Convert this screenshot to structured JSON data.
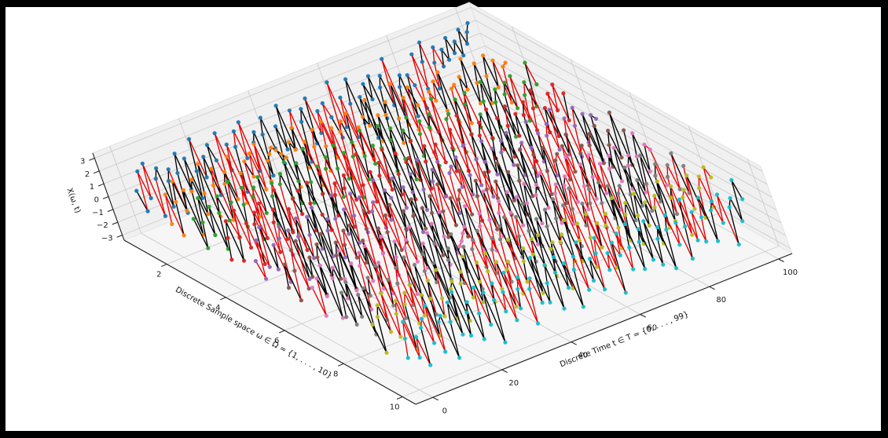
{
  "figure": {
    "frame_color": "#000000",
    "background": "#ffffff"
  },
  "chart_data": {
    "type": "line",
    "projection": "3d",
    "title": "",
    "xlabel": "Discrete Sample space ω ∈ Ω = {1, . . . , 10}",
    "ylabel": "Discrete Time t ∈ T = {0, . . . , 99}",
    "zlabel": "X(ω, t)",
    "xticks": [
      2,
      4,
      6,
      8,
      10
    ],
    "yticks": [
      0,
      20,
      40,
      60,
      80,
      100
    ],
    "zticks": [
      -3,
      -2,
      -1,
      0,
      1,
      2,
      3
    ],
    "xlim": [
      0.55,
      10.45
    ],
    "ylim": [
      -4.95,
      103.95
    ],
    "zlim": [
      -3.4,
      3.4
    ],
    "grid": true,
    "legend": null,
    "pane_color": "#f0f0f0",
    "floor_color": "#f6f6f6",
    "grid_color": "#cccccc",
    "axis_color": "#1a1a1a",
    "tick_color": "#1a1a1a",
    "line_colors": {
      "primary": "#e50000",
      "secondary": "#000000"
    },
    "series": [
      {
        "name": "ω = 1",
        "omega": 1,
        "marker_color": "#1f77b4",
        "values": [
          0.5,
          -1.2,
          1.8,
          -0.4,
          2.2,
          -2.0,
          0.8,
          1.5,
          -1.6,
          0.3,
          1.1,
          -2.4,
          0.6,
          2.0,
          -0.9,
          1.4,
          -1.8,
          0.2,
          2.6,
          -0.5,
          1.0,
          -2.1,
          1.7,
          0.4,
          -1.3,
          2.3,
          -0.7,
          1.2,
          -2.6,
          0.8,
          1.9,
          -0.3,
          2.4,
          -1.5,
          0.6,
          1.3,
          -2.2,
          0.9,
          2.1,
          -0.4,
          -1.7,
          1.1,
          -0.8,
          2.5,
          -1.0,
          0.5,
          1.8,
          -2.3,
          0.7,
          1.6,
          -1.2,
          2.2,
          -0.6,
          1.0,
          -2.0,
          1.4,
          0.2,
          -1.5,
          2.7,
          -0.9,
          1.3,
          -1.9,
          0.6,
          2.4,
          -1.1,
          0.8,
          -2.5,
          1.6,
          0.3,
          2.0,
          -1.4,
          0.9,
          1.7,
          -0.7,
          2.8,
          -1.6,
          0.4,
          1.2,
          -2.1,
          1.0,
          0.1,
          -1.8,
          2.3,
          -0.5,
          1.5,
          2.9,
          -0.8,
          1.1,
          2.2,
          0.6,
          1.8,
          0.9,
          2.5,
          1.2,
          2.0,
          0.8,
          2.7,
          1.5,
          2.3,
          2.9
        ]
      },
      {
        "name": "ω = 2",
        "omega": 2,
        "marker_color": "#ff7f0e",
        "values": [
          -0.8,
          1.4,
          -1.9,
          0.6,
          2.1,
          -0.3,
          1.2,
          -2.4,
          0.9,
          1.7,
          -1.1,
          0.4,
          2.6,
          -1.6,
          0.7,
          1.9,
          -2.2,
          0.5,
          1.3,
          -0.9,
          2.3,
          -1.4,
          0.8,
          -2.7,
          1.5,
          0.2,
          1.9,
          -1.0,
          2.4,
          -0.6,
          0.9,
          1.3,
          1.7,
          1.4,
          1.0,
          0.6,
          -1.8,
          1.6,
          0.9,
          2.5,
          -0.7,
          1.2,
          -2.3,
          0.6,
          1.8,
          -1.5,
          0.3,
          2.1,
          -0.8,
          1.4,
          -2.6,
          0.9,
          1.6,
          -0.4,
          2.0,
          -1.2,
          0.7,
          -1.9,
          1.3,
          0.5,
          2.4,
          -0.9,
          1.0,
          -2.2,
          0.8,
          1.7,
          -1.6,
          0.2,
          2.8,
          -0.5,
          1.5,
          -1.1,
          2.1,
          0.6,
          -1.4,
          0.9,
          -2.5,
          1.2,
          0.4,
          1.8,
          -0.6,
          2.3,
          -1.7,
          0.8,
          1.0,
          -2.1,
          1.4,
          0.3,
          2.6,
          -1.0,
          0.5,
          1.9,
          -1.3,
          0.7,
          2.2,
          -0.4,
          1.6,
          -1.8,
          0.9,
          1.1
        ]
      },
      {
        "name": "ω = 3",
        "omega": 3,
        "marker_color": "#2ca02c",
        "values": [
          0.9,
          -1.5,
          0.4,
          2.2,
          -0.8,
          1.3,
          -2.1,
          0.6,
          1.8,
          -0.2,
          -1.6,
          1.0,
          2.5,
          -1.1,
          0.5,
          1.7,
          -2.4,
          0.8,
          1.4,
          -0.7,
          2.0,
          -1.8,
          0.3,
          1.2,
          -2.6,
          0.9,
          1.6,
          -0.4,
          2.3,
          -1.0,
          0.6,
          1.9,
          -1.3,
          0.2,
          2.7,
          -0.9,
          1.1,
          -2.0,
          0.7,
          1.5,
          -1.7,
          0.4,
          2.1,
          -0.6,
          1.3,
          -2.3,
          0.8,
          1.8,
          -1.2,
          0.5,
          2.4,
          -0.3,
          1.0,
          -1.9,
          0.6,
          2.2,
          -1.4,
          0.9,
          1.7,
          -0.8,
          -2.5,
          1.2,
          0.3,
          2.0,
          -1.1,
          0.5,
          1.4,
          -2.2,
          0.7,
          1.6,
          -0.5,
          2.6,
          -1.5,
          0.8,
          1.1,
          -2.0,
          0.4,
          1.9,
          -0.9,
          1.3,
          2.1,
          -0.7,
          0.2,
          -1.8,
          1.0,
          2.4,
          -1.2,
          0.6,
          1.5,
          -2.3,
          0.9,
          1.7,
          -0.4,
          2.0,
          -1.6,
          0.3,
          1.2,
          -0.8,
          2.5,
          0.7
        ]
      },
      {
        "name": "ω = 4",
        "omega": 4,
        "marker_color": "#d62728",
        "values": [
          -1.0,
          0.6,
          1.8,
          -1.4,
          0.3,
          2.3,
          -0.7,
          1.1,
          -2.2,
          0.8,
          1.6,
          -0.5,
          2.1,
          -1.8,
          0.4,
          1.3,
          -1.1,
          2.6,
          -0.8,
          0.9,
          -2.4,
          1.5,
          0.2,
          1.9,
          -1.3,
          0.7,
          2.2,
          -0.4,
          -1.7,
          1.0,
          2.5,
          -0.9,
          0.6,
          1.4,
          -2.1,
          0.8,
          1.7,
          -0.3,
          2.0,
          -1.5,
          0.5,
          2.8,
          -1.0,
          1.2,
          -2.3,
          0.7,
          1.6,
          -0.6,
          2.4,
          -1.2,
          0.3,
          1.8,
          -1.9,
          0.9,
          1.1,
          -0.7,
          2.2,
          -1.6,
          0.4,
          1.5,
          -2.5,
          0.8,
          1.3,
          -0.2,
          2.1,
          -1.1,
          0.6,
          1.9,
          -1.4,
          0.5,
          2.7,
          -0.8,
          1.0,
          -2.0,
          0.7,
          1.6,
          -1.3,
          0.2,
          2.3,
          -0.9,
          1.4,
          -1.7,
          0.6,
          2.0,
          -0.4,
          1.2,
          -2.6,
          0.9,
          1.8,
          -0.5,
          1.1,
          2.4,
          -1.0,
          0.8,
          -1.5,
          1.7,
          0.3,
          2.2,
          -0.7,
          1.3
        ]
      },
      {
        "name": "ω = 5",
        "omega": 5,
        "marker_color": "#9467bd",
        "values": [
          0.2,
          -1.3,
          1.6,
          -0.6,
          2.4,
          -1.0,
          0.8,
          -2.2,
          1.1,
          1.9,
          -0.4,
          1.4,
          -2.5,
          0.7,
          2.0,
          -1.2,
          0.5,
          1.8,
          -0.8,
          2.3,
          -1.6,
          0.3,
          1.1,
          -2.0,
          0.9,
          2.6,
          -0.5,
          1.3,
          -1.4,
          0.6,
          2.2,
          -0.9,
          1.7,
          -2.3,
          0.4,
          1.0,
          -1.1,
          2.5,
          -0.7,
          1.5,
          0.8,
          -1.8,
          2.1,
          -0.3,
          1.2,
          -2.4,
          0.6,
          1.9,
          -1.0,
          0.5,
          2.7,
          -1.5,
          0.8,
          1.6,
          -0.6,
          2.0,
          -2.1,
          0.9,
          1.3,
          -0.4,
          1.8,
          -1.2,
          0.2,
          2.4,
          -0.8,
          1.1,
          -1.9,
          0.7,
          2.2,
          -0.5,
          1.4,
          -2.6,
          0.9,
          1.7,
          -0.3,
          2.1,
          -1.3,
          0.6,
          1.0,
          -1.7,
          0.4,
          2.3,
          -0.9,
          1.2,
          -2.2,
          0.8,
          1.6,
          -0.5,
          2.5,
          -1.1,
          0.3,
          1.5,
          -1.6,
          0.7,
          2.0,
          -0.8,
          1.3,
          -2.4,
          1.0,
          0.6
        ]
      },
      {
        "name": "ω = 6",
        "omega": 6,
        "marker_color": "#8c564b",
        "values": [
          -0.6,
          1.1,
          -1.8,
          0.4,
          1.9,
          -1.2,
          2.4,
          -0.5,
          0.9,
          -2.1,
          0.7,
          1.6,
          -0.9,
          2.2,
          -1.4,
          0.3,
          1.2,
          -2.5,
          0.8,
          1.8,
          -0.4,
          2.0,
          -1.0,
          0.6,
          -1.6,
          1.3,
          2.6,
          -0.8,
          1.0,
          -2.2,
          0.5,
          1.7,
          -1.1,
          2.3,
          -0.7,
          0.2,
          1.5,
          -1.9,
          0.9,
          2.1,
          -0.3,
          1.2,
          -2.6,
          0.6,
          1.8,
          -1.5,
          0.4,
          2.4,
          -0.9,
          1.1,
          -2.0,
          0.8,
          1.4,
          -0.6,
          2.7,
          -1.3,
          0.5,
          1.6,
          -2.3,
          0.7,
          1.9,
          -0.2,
          1.0,
          -1.7,
          2.2,
          -0.8,
          1.3,
          -2.1,
          0.4,
          1.5,
          -1.0,
          2.5,
          -0.6,
          0.9,
          1.8,
          -1.4,
          0.3,
          2.0,
          -2.4,
          0.8,
          1.2,
          -0.9,
          1.6,
          -0.5,
          2.3,
          -1.8,
          0.6,
          1.1,
          -2.2,
          0.9,
          1.7,
          -0.7,
          2.1,
          -1.2,
          0.4,
          1.4,
          -0.8,
          2.6,
          -1.6,
          1.0
        ]
      },
      {
        "name": "ω = 7",
        "omega": 7,
        "marker_color": "#e377c2",
        "values": [
          0.7,
          -1.6,
          1.2,
          -0.3,
          2.0,
          -2.2,
          0.8,
          1.5,
          -1.0,
          0.4,
          2.5,
          -0.7,
          1.3,
          -2.4,
          0.9,
          1.8,
          -0.5,
          2.1,
          -1.3,
          0.6,
          -1.9,
          1.1,
          2.3,
          -0.8,
          0.5,
          1.6,
          -2.6,
          0.9,
          1.4,
          -0.4,
          2.2,
          -1.1,
          0.7,
          -2.0,
          1.3,
          0.2,
          1.8,
          -1.5,
          0.6,
          2.4,
          -0.9,
          -0.5,
          -0.2,
          0.3,
          0.7,
          -0.6,
          2.1,
          -1.4,
          0.3,
          1.2,
          -1.8,
          0.5,
          2.6,
          -1.0,
          0.7,
          1.5,
          -2.2,
          0.4,
          1.9,
          -0.8,
          1.3,
          -2.5,
          0.6,
          2.0,
          -1.2,
          0.9,
          1.6,
          -0.3,
          2.3,
          -1.7,
          0.5,
          1.1,
          -2.1,
          0.8,
          1.4,
          -0.7,
          2.7,
          -1.5,
          0.2,
          1.8,
          -1.0,
          0.6,
          2.2,
          -0.9,
          1.3,
          -2.4,
          0.7,
          1.6,
          -0.5,
          2.0,
          -1.3,
          0.4,
          1.1,
          -1.9,
          0.8,
          2.5,
          -0.6,
          1.4,
          0.9,
          -2.0
        ]
      },
      {
        "name": "ω = 8",
        "omega": 8,
        "marker_color": "#7f7f7f",
        "values": [
          -0.3,
          1.5,
          -1.1,
          2.1,
          -0.7,
          0.9,
          -2.3,
          1.2,
          0.5,
          1.8,
          -1.6,
          0.4,
          2.4,
          -0.8,
          1.1,
          -2.0,
          0.6,
          1.7,
          -1.3,
          0.2,
          2.2,
          -0.9,
          1.4,
          -2.6,
          0.7,
          1.9,
          -0.4,
          1.0,
          -1.8,
          2.3,
          -0.6,
          0.8,
          1.6,
          -1.2,
          2.5,
          -0.5,
          1.3,
          -2.1,
          0.9,
          1.5,
          -0.7,
          2.0,
          -1.4,
          0.3,
          1.1,
          -2.4,
          0.8,
          1.7,
          -0.9,
          2.2,
          -1.0,
          0.5,
          1.9,
          -1.7,
          0.6,
          2.6,
          -0.8,
          1.2,
          -2.2,
          0.4,
          1.6,
          -1.1,
          0.7,
          2.1,
          -0.5,
          1.4,
          -1.9,
          0.9,
          2.4,
          -0.6,
          1.0,
          -2.5,
          0.8,
          1.8,
          -1.3,
          0.5,
          2.0,
          -0.9,
          1.5,
          -2.1,
          0.7,
          1.2,
          -1.6,
          0.3,
          2.3,
          -0.8,
          1.1,
          -1.4,
          0.6,
          2.7,
          -1.0,
          0.9,
          1.7,
          -2.3,
          0.5,
          1.3,
          -0.7,
          2.0,
          -1.2,
          0.8
        ]
      },
      {
        "name": "ω = 9",
        "omega": 9,
        "marker_color": "#bcbd22",
        "values": [
          0.4,
          -1.9,
          0.8,
          1.6,
          -0.6,
          2.3,
          -1.2,
          0.5,
          1.4,
          -2.5,
          0.9,
          1.7,
          -0.8,
          2.1,
          -0.4,
          1.1,
          -2.2,
          0.6,
          1.9,
          -1.0,
          0.3,
          2.4,
          -1.5,
          0.7,
          1.2,
          -2.0,
          0.8,
          1.6,
          -0.5,
          2.6,
          -1.1,
          0.4,
          1.8,
          -1.4,
          0.9,
          2.2,
          -0.7,
          1.3,
          -2.3,
          0.5,
          1.0,
          -1.6,
          2.5,
          -0.9,
          0.6,
          1.5,
          -2.1,
          0.8,
          1.9,
          -0.3,
          2.0,
          -1.3,
          0.7,
          1.1,
          -2.6,
          0.9,
          1.4,
          -0.8,
          2.3,
          -1.0,
          0.5,
          1.7,
          -1.8,
          0.4,
          2.1,
          -0.6,
          1.2,
          -2.4,
          0.8,
          1.6,
          -1.2,
          0.3,
          2.5,
          -0.9,
          1.0,
          1.8,
          -1.5,
          0.6,
          2.2,
          -0.4,
          1.3,
          -2.0,
          0.7,
          1.5,
          -1.1,
          2.4,
          -0.8,
          0.9,
          1.7,
          -2.2,
          0.6,
          1.1,
          -0.5,
          2.0,
          -1.4,
          0.8,
          1.6,
          -0.9,
          2.1,
          1.2
        ]
      },
      {
        "name": "ω = 10",
        "omega": 10,
        "marker_color": "#17becf",
        "values": [
          -0.9,
          0.5,
          1.7,
          -1.2,
          0.3,
          -2.0,
          0.8,
          1.4,
          -0.6,
          2.2,
          -1.5,
          0.7,
          1.1,
          -2.3,
          0.4,
          1.8,
          -0.8,
          2.4,
          -1.1,
          0.6,
          1.3,
          -1.7,
          0.2,
          2.1,
          -0.9,
          1.5,
          -2.5,
          0.7,
          1.9,
          -0.4,
          1.0,
          -1.3,
          2.3,
          -0.6,
          0.8,
          1.6,
          -2.1,
          0.5,
          1.2,
          -0.8,
          2.6,
          -1.0,
          0.4,
          1.7,
          -1.8,
          0.9,
          2.0,
          -0.5,
          1.3,
          -2.2,
          0.6,
          1.5,
          -1.2,
          2.4,
          -0.7,
          0.9,
          -1.6,
          1.1,
          2.2,
          -0.4,
          0.8,
          -2.4,
          1.4,
          0.3,
          1.9,
          -1.0,
          0.6,
          2.3,
          -1.3,
          0.7,
          1.6,
          -0.9,
          2.0,
          -1.5,
          0.4,
          1.2,
          -2.1,
          0.8,
          1.8,
          -0.6,
          1.0,
          -1.9,
          0.5,
          2.5,
          -0.8,
          1.3,
          -1.1,
          0.7,
          2.1,
          -1.4,
          0.9,
          1.5,
          -0.3,
          1.8,
          -2.2,
          0.6,
          1.2,
          -0.7,
          2.4,
          0.8
        ]
      }
    ]
  }
}
